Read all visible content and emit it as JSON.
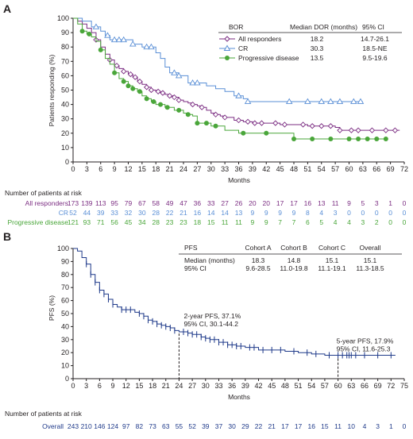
{
  "chart_data": [
    {
      "panel": "A",
      "type": "line",
      "xlabel": "Months",
      "ylabel": "Patients responding (%)",
      "xlim": [
        0,
        72
      ],
      "ylim": [
        0,
        100
      ],
      "xticks": [
        0,
        3,
        6,
        9,
        12,
        15,
        18,
        21,
        24,
        27,
        30,
        33,
        36,
        39,
        42,
        45,
        48,
        51,
        54,
        57,
        60,
        63,
        66,
        69,
        72
      ],
      "yticks": [
        0,
        10,
        20,
        30,
        40,
        50,
        60,
        70,
        80,
        90,
        100
      ],
      "table": {
        "headers": [
          "BOR",
          "Median DOR (months)",
          "95% CI"
        ],
        "rows": [
          {
            "label": "All responders",
            "median": "18.2",
            "ci": "14.7-26.1"
          },
          {
            "label": "CR",
            "median": "30.3",
            "ci": "18.5-NE"
          },
          {
            "label": "Progressive disease",
            "median": "13.5",
            "ci": "9.5-19.6"
          }
        ]
      },
      "series": [
        {
          "name": "All responders",
          "color": "#7b2d82",
          "marker": "diamond",
          "points": [
            [
              0,
              100
            ],
            [
              1,
              98
            ],
            [
              2,
              96
            ],
            [
              3,
              93
            ],
            [
              4,
              90
            ],
            [
              5,
              85
            ],
            [
              6,
              80
            ],
            [
              7,
              75
            ],
            [
              8,
              71
            ],
            [
              9,
              67
            ],
            [
              10,
              65
            ],
            [
              11,
              63
            ],
            [
              12,
              61
            ],
            [
              13,
              59
            ],
            [
              14,
              56
            ],
            [
              15,
              54
            ],
            [
              16,
              52
            ],
            [
              17,
              50
            ],
            [
              18,
              49
            ],
            [
              19,
              48
            ],
            [
              20,
              47
            ],
            [
              21,
              46
            ],
            [
              22,
              45
            ],
            [
              23,
              43
            ],
            [
              24,
              42
            ],
            [
              25,
              41
            ],
            [
              26,
              40
            ],
            [
              27,
              39
            ],
            [
              28,
              38
            ],
            [
              29,
              36
            ],
            [
              30,
              34
            ],
            [
              31,
              33
            ],
            [
              32,
              32
            ],
            [
              33,
              31
            ],
            [
              34,
              31
            ],
            [
              35,
              29
            ],
            [
              36,
              29
            ],
            [
              37,
              28
            ],
            [
              38,
              28
            ],
            [
              39,
              27
            ],
            [
              42,
              27
            ],
            [
              45,
              26
            ],
            [
              48,
              26
            ],
            [
              51,
              25
            ],
            [
              54,
              25
            ],
            [
              57,
              24
            ],
            [
              58,
              22
            ],
            [
              60,
              22
            ],
            [
              63,
              22
            ],
            [
              66,
              22
            ],
            [
              69,
              22
            ],
            [
              71,
              22
            ]
          ],
          "censor_x": [
            5,
            8,
            9.5,
            11,
            12.5,
            13.5,
            14.5,
            16,
            17,
            18.5,
            19.5,
            21,
            22,
            23,
            26,
            28,
            31,
            33,
            36,
            38,
            39.5,
            41,
            44,
            46,
            50,
            52,
            54,
            56,
            58,
            60.5,
            62,
            65,
            68,
            70
          ]
        },
        {
          "name": "CR",
          "color": "#5a8fd6",
          "marker": "triangle",
          "points": [
            [
              0,
              100
            ],
            [
              2,
              98
            ],
            [
              4,
              94
            ],
            [
              6,
              91
            ],
            [
              7,
              88
            ],
            [
              8,
              85
            ],
            [
              12,
              85
            ],
            [
              13,
              82
            ],
            [
              15,
              80
            ],
            [
              18,
              76
            ],
            [
              19,
              72
            ],
            [
              20,
              66
            ],
            [
              21,
              62
            ],
            [
              23,
              60
            ],
            [
              25,
              55
            ],
            [
              29,
              53
            ],
            [
              31,
              51
            ],
            [
              33,
              49
            ],
            [
              35,
              46
            ],
            [
              37,
              44
            ],
            [
              38,
              42
            ],
            [
              45,
              42
            ],
            [
              48,
              42
            ],
            [
              55,
              42
            ],
            [
              58,
              42
            ],
            [
              63,
              42
            ]
          ],
          "censor_x": [
            5,
            7.5,
            9,
            10,
            11,
            13,
            16,
            17,
            22,
            23,
            26,
            27,
            36,
            38,
            47,
            51,
            54,
            56,
            58,
            61,
            62.5
          ]
        },
        {
          "name": "Progressive disease",
          "color": "#4aa63a",
          "marker": "circle",
          "points": [
            [
              0,
              100
            ],
            [
              1,
              96
            ],
            [
              2,
              91
            ],
            [
              3,
              89
            ],
            [
              4,
              87
            ],
            [
              5,
              84
            ],
            [
              6,
              78
            ],
            [
              7,
              72
            ],
            [
              8,
              68
            ],
            [
              9,
              62
            ],
            [
              10,
              58
            ],
            [
              11,
              56
            ],
            [
              12,
              53
            ],
            [
              13,
              51
            ],
            [
              14,
              49
            ],
            [
              15,
              46
            ],
            [
              16,
              44
            ],
            [
              17,
              42
            ],
            [
              18,
              40
            ],
            [
              20,
              38
            ],
            [
              22,
              36
            ],
            [
              24,
              34
            ],
            [
              25,
              33
            ],
            [
              26,
              32
            ],
            [
              27,
              27
            ],
            [
              30,
              25
            ],
            [
              33,
              22
            ],
            [
              36,
              20
            ],
            [
              39,
              20
            ],
            [
              42,
              20
            ],
            [
              45,
              20
            ],
            [
              48,
              16
            ],
            [
              51,
              16
            ],
            [
              54,
              16
            ],
            [
              57,
              16
            ],
            [
              60,
              16
            ],
            [
              63,
              16
            ],
            [
              68,
              16
            ]
          ],
          "censor_x": [
            2,
            3.5,
            6,
            9,
            11,
            12,
            13,
            14.5,
            16,
            17.5,
            19,
            20.5,
            23,
            25,
            27,
            29,
            31,
            37,
            42,
            48,
            52,
            56,
            60,
            62,
            64,
            66,
            68
          ]
        }
      ],
      "risk_table": {
        "title": "Number of patients at risk",
        "groups": [
          {
            "name": "All responders",
            "color": "#7b2d82",
            "values": [
              "173",
              "139",
              "113",
              "95",
              "79",
              "67",
              "58",
              "49",
              "47",
              "36",
              "33",
              "27",
              "26",
              "20",
              "20",
              "17",
              "17",
              "16",
              "13",
              "11",
              "9",
              "5",
              "3",
              "1",
              "0"
            ]
          },
          {
            "name": "CR",
            "color": "#5a8fd6",
            "values": [
              "52",
              "44",
              "39",
              "33",
              "32",
              "30",
              "28",
              "22",
              "21",
              "16",
              "14",
              "14",
              "13",
              "9",
              "9",
              "9",
              "9",
              "8",
              "4",
              "3",
              "0",
              "0",
              "0",
              "0",
              "0"
            ]
          },
          {
            "name": "Progressive disease",
            "color": "#4aa63a",
            "values": [
              "121",
              "93",
              "71",
              "56",
              "45",
              "34",
              "28",
              "23",
              "23",
              "18",
              "15",
              "11",
              "11",
              "9",
              "9",
              "7",
              "7",
              "6",
              "5",
              "4",
              "4",
              "3",
              "2",
              "0",
              "0"
            ]
          }
        ]
      }
    },
    {
      "panel": "B",
      "type": "line",
      "xlabel": "Months",
      "ylabel": "PFS (%)",
      "xlim": [
        0,
        75
      ],
      "ylim": [
        0,
        100
      ],
      "xticks": [
        0,
        3,
        6,
        9,
        12,
        15,
        18,
        21,
        24,
        27,
        30,
        33,
        36,
        39,
        42,
        45,
        48,
        51,
        54,
        57,
        60,
        63,
        66,
        69,
        72,
        75
      ],
      "yticks": [
        0,
        10,
        20,
        30,
        40,
        50,
        60,
        70,
        80,
        90,
        100
      ],
      "table": {
        "headers": [
          "PFS",
          "Cohort A",
          "Cohort B",
          "Cohort C",
          "Overall"
        ],
        "rows": [
          {
            "label": "Median (months)",
            "values": [
              "18.3",
              "14.8",
              "15.1",
              "15.1"
            ]
          },
          {
            "label": "95% CI",
            "values": [
              "9.6-28.5",
              "11.0-19.8",
              "11.1-19.1",
              "11.3-18.5"
            ]
          }
        ]
      },
      "annotations": [
        {
          "text1": "2-year PFS, 37.1%",
          "text2": "95% CI, 30.1-44.2",
          "x": 24,
          "y": 37.1
        },
        {
          "text1": "5-year PFS, 17.9%",
          "text2": "95% CI, 11.6-25.3",
          "x": 60,
          "y": 17.9
        }
      ],
      "series": [
        {
          "name": "Overall",
          "color": "#1f3a8a",
          "points": [
            [
              0,
              100
            ],
            [
              1,
              98
            ],
            [
              2,
              93
            ],
            [
              3,
              88
            ],
            [
              4,
              80
            ],
            [
              5,
              74
            ],
            [
              6,
              68
            ],
            [
              7,
              65
            ],
            [
              8,
              61
            ],
            [
              9,
              57
            ],
            [
              10,
              55
            ],
            [
              11,
              53
            ],
            [
              12,
              53
            ],
            [
              14,
              51
            ],
            [
              15,
              50
            ],
            [
              16,
              48
            ],
            [
              17,
              45
            ],
            [
              18,
              44
            ],
            [
              19,
              42
            ],
            [
              20,
              41
            ],
            [
              21,
              40
            ],
            [
              22,
              39
            ],
            [
              23,
              37
            ],
            [
              24,
              36
            ],
            [
              26,
              35
            ],
            [
              27,
              34
            ],
            [
              29,
              32
            ],
            [
              30,
              31
            ],
            [
              31,
              30
            ],
            [
              33,
              28
            ],
            [
              35,
              26
            ],
            [
              37,
              25
            ],
            [
              39,
              24
            ],
            [
              40,
              24
            ],
            [
              42,
              22
            ],
            [
              45,
              22
            ],
            [
              48,
              21
            ],
            [
              51,
              20
            ],
            [
              54,
              19
            ],
            [
              57,
              18
            ],
            [
              60,
              18
            ],
            [
              63,
              18
            ],
            [
              66,
              18
            ],
            [
              69,
              18
            ],
            [
              72,
              18
            ],
            [
              73,
              18
            ]
          ],
          "censor_x": [
            3,
            4,
            5,
            6,
            7,
            8,
            9,
            11,
            12,
            13,
            15,
            16,
            17,
            18,
            19,
            20,
            21,
            22,
            23,
            25,
            26,
            27,
            28,
            29,
            30,
            31,
            32,
            33,
            34,
            35,
            36,
            37,
            38,
            40,
            41,
            43,
            45,
            47,
            50,
            53,
            55,
            58,
            60,
            61,
            62,
            62.5,
            63,
            64,
            66,
            69,
            72
          ]
        }
      ],
      "risk_table": {
        "title": "Number of patients at risk",
        "groups": [
          {
            "name": "Overall",
            "color": "#1f3a8a",
            "values": [
              "243",
              "210",
              "146",
              "124",
              "97",
              "82",
              "73",
              "63",
              "55",
              "52",
              "39",
              "37",
              "30",
              "29",
              "22",
              "21",
              "17",
              "17",
              "16",
              "15",
              "11",
              "10",
              "4",
              "3",
              "1",
              "0"
            ]
          }
        ]
      }
    }
  ]
}
